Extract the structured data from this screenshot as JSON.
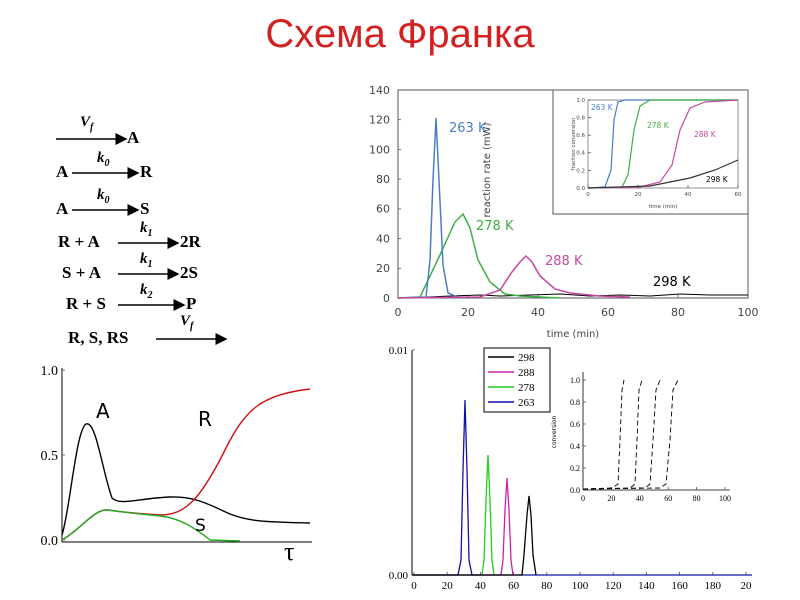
{
  "title": "Схема Франка",
  "reactions": [
    {
      "left": "",
      "rate": "V",
      "rate_sub": "f",
      "right": "A"
    },
    {
      "left": "A",
      "rate": "k",
      "rate_sub": "0",
      "right": "R"
    },
    {
      "left": "A",
      "rate": "k",
      "rate_sub": "0",
      "right": "S"
    },
    {
      "left": "R + A",
      "rate": "k",
      "rate_sub": "1",
      "right": "2R"
    },
    {
      "left": "S + A",
      "rate": "k",
      "rate_sub": "1",
      "right": "2S"
    },
    {
      "left": "R + S",
      "rate": "k",
      "rate_sub": "2",
      "right": "P"
    },
    {
      "left": "R, S, RS",
      "rate": "V",
      "rate_sub": "f",
      "right": ""
    }
  ],
  "chart_data": [
    {
      "type": "line",
      "xlabel": "time (min)",
      "ylabel": "reaction rate (mW)",
      "xlim": [
        0,
        100
      ],
      "ylim": [
        0,
        140
      ],
      "x_ticks": [
        "0",
        "20",
        "40",
        "60",
        "80",
        "100"
      ],
      "y_ticks": [
        "0",
        "20",
        "40",
        "60",
        "80",
        "100",
        "120",
        "140"
      ],
      "series": [
        {
          "name": "263 K",
          "color": "#4a7ec4",
          "peak_x": 10,
          "peak_y": 121
        },
        {
          "name": "278 K",
          "color": "#3cb043",
          "peak_x": 18,
          "peak_y": 57
        },
        {
          "name": "288 K",
          "color": "#c648a0",
          "peak_x": 36,
          "peak_y": 29
        },
        {
          "name": "298 K",
          "color": "#000000",
          "peak_x": 70,
          "peak_y": 3
        }
      ],
      "inset": {
        "xlabel": "time (min)",
        "ylabel": "fraction conversion",
        "x_ticks": [
          "0",
          "20",
          "40",
          "60"
        ],
        "y_ticks": [
          "0.0",
          "0.2",
          "0.4",
          "0.6",
          "0.8",
          "1.0"
        ],
        "labels": [
          "263 K",
          "278 K",
          "288 K",
          "298 K"
        ]
      }
    },
    {
      "type": "line",
      "xlabel": "",
      "ylabel": "",
      "y_ticks": [
        "0.0",
        "0.5",
        "1.0"
      ],
      "x_label_symbol": "τ",
      "series": [
        {
          "name": "A",
          "color": "#000000"
        },
        {
          "name": "R",
          "color": "#cc1111"
        },
        {
          "name": "S",
          "color": "#22aa22"
        }
      ]
    },
    {
      "type": "line",
      "xlabel": "",
      "ylabel": "",
      "x_ticks": [
        "0",
        "20",
        "40",
        "60",
        "80",
        "100",
        "120",
        "140",
        "160",
        "180",
        "20"
      ],
      "y_ticks": [
        "0.00",
        "0.01"
      ],
      "series": [
        {
          "name": "298",
          "color": "#000000",
          "peak_x": 66,
          "peak_y": 0.0036
        },
        {
          "name": "288",
          "color": "#cc22aa",
          "peak_x": 54,
          "peak_y": 0.0045
        },
        {
          "name": "278",
          "color": "#22cc22",
          "peak_x": 43,
          "peak_y": 0.0056
        },
        {
          "name": "263",
          "color": "#1010aa",
          "peak_x": 29,
          "peak_y": 0.0083
        }
      ],
      "inset": {
        "ylabel": "conversion",
        "x_ticks": [
          "0",
          "20",
          "40",
          "60",
          "80",
          "100"
        ],
        "y_ticks": [
          "0.0",
          "0.2",
          "0.4",
          "0.6",
          "0.8",
          "1.0"
        ]
      }
    }
  ]
}
